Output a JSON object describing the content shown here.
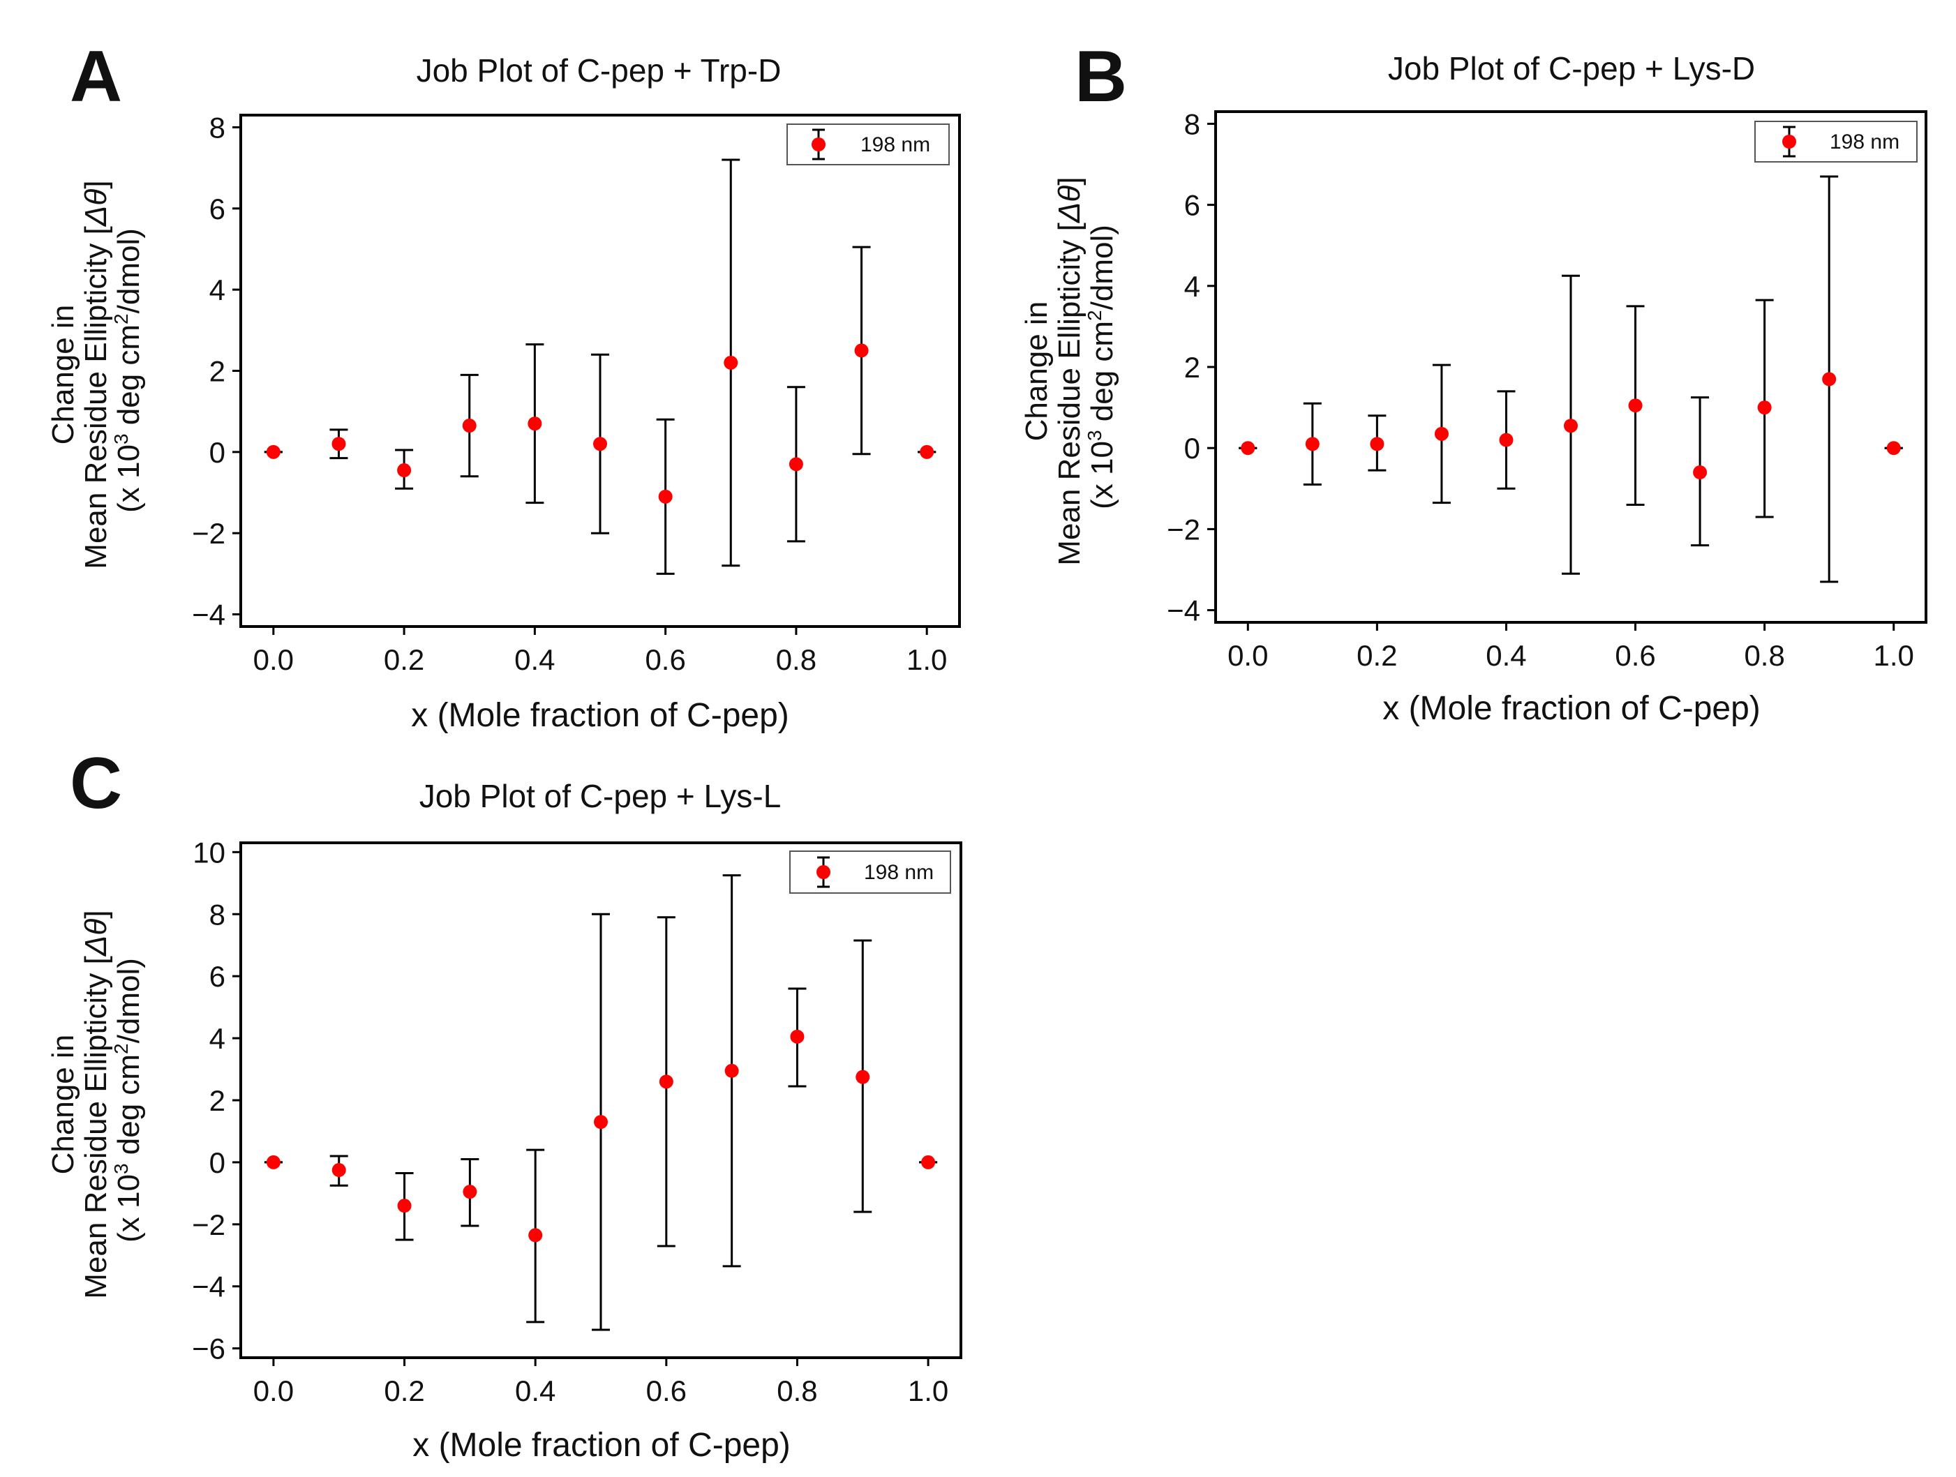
{
  "chart_data": [
    {
      "panel": "A",
      "type": "scatter",
      "title": "Job Plot of C-pep + Trp-D",
      "xlabel": "x (Mole fraction of C-pep)",
      "ylabel": {
        "line1": "Change in",
        "line2_prefix": "Mean Residue Ellipticity [",
        "line2_symbol": "Δθ",
        "line2_suffix": "]",
        "line3_a": "(x 10",
        "line3_sup1": "3",
        "line3_b": " deg cm",
        "line3_sup2": "2",
        "line3_c": "/dmol)"
      },
      "xlim": [
        -0.05,
        1.05
      ],
      "ylim": [
        -4.3,
        8.3
      ],
      "xticks": [
        0.0,
        0.2,
        0.4,
        0.6,
        0.8,
        1.0
      ],
      "xtick_labels": [
        "0.0",
        "0.2",
        "0.4",
        "0.6",
        "0.8",
        "1.0"
      ],
      "yticks": [
        -4,
        -2,
        0,
        2,
        4,
        6,
        8
      ],
      "ytick_labels": [
        "−4",
        "−2",
        "0",
        "2",
        "4",
        "6",
        "8"
      ],
      "legend": {
        "label": "198 nm",
        "position": "top-right"
      },
      "marker_color": "#ff0000",
      "series": [
        {
          "name": "198 nm",
          "x": [
            0.0,
            0.1,
            0.2,
            0.3,
            0.4,
            0.5,
            0.6,
            0.7,
            0.8,
            0.9,
            1.0
          ],
          "y": [
            0.0,
            0.2,
            -0.45,
            0.65,
            0.7,
            0.2,
            -1.1,
            2.2,
            -0.3,
            2.5,
            0.0
          ],
          "err_low": [
            0.0,
            -0.15,
            -0.9,
            -0.6,
            -1.25,
            -2.0,
            -3.0,
            -2.8,
            -2.2,
            -0.05,
            0.0
          ],
          "err_high": [
            0.0,
            0.55,
            0.05,
            1.9,
            2.65,
            2.4,
            0.8,
            7.2,
            1.6,
            5.05,
            0.0
          ]
        }
      ]
    },
    {
      "panel": "B",
      "type": "scatter",
      "title": "Job Plot of C-pep + Lys-D",
      "xlabel": "x (Mole fraction of C-pep)",
      "ylabel": {
        "line1": "Change in",
        "line2_prefix": "Mean Residue Ellipticity [",
        "line2_symbol": "Δθ",
        "line2_suffix": "]",
        "line3_a": "(x 10",
        "line3_sup1": "3",
        "line3_b": " deg cm",
        "line3_sup2": "2",
        "line3_c": "/dmol)"
      },
      "xlim": [
        -0.05,
        1.05
      ],
      "ylim": [
        -4.3,
        8.3
      ],
      "xticks": [
        0.0,
        0.2,
        0.4,
        0.6,
        0.8,
        1.0
      ],
      "xtick_labels": [
        "0.0",
        "0.2",
        "0.4",
        "0.6",
        "0.8",
        "1.0"
      ],
      "yticks": [
        -4,
        -2,
        0,
        2,
        4,
        6,
        8
      ],
      "ytick_labels": [
        "−4",
        "−2",
        "0",
        "2",
        "4",
        "6",
        "8"
      ],
      "legend": {
        "label": "198 nm",
        "position": "top-right"
      },
      "marker_color": "#ff0000",
      "series": [
        {
          "name": "198 nm",
          "x": [
            0.0,
            0.1,
            0.2,
            0.3,
            0.4,
            0.5,
            0.6,
            0.7,
            0.8,
            0.9,
            1.0
          ],
          "y": [
            0.0,
            0.1,
            0.1,
            0.35,
            0.2,
            0.55,
            1.05,
            -0.6,
            1.0,
            1.7,
            0.0
          ],
          "err_low": [
            0.0,
            -0.9,
            -0.55,
            -1.35,
            -1.0,
            -3.1,
            -1.4,
            -2.4,
            -1.7,
            -3.3,
            0.0
          ],
          "err_high": [
            0.0,
            1.1,
            0.8,
            2.05,
            1.4,
            4.25,
            3.5,
            1.25,
            3.65,
            6.7,
            0.0
          ]
        }
      ]
    },
    {
      "panel": "C",
      "type": "scatter",
      "title": "Job Plot of C-pep + Lys-L",
      "xlabel": "x (Mole fraction of C-pep)",
      "ylabel": {
        "line1": "Change in",
        "line2_prefix": "Mean Residue Ellipticity [",
        "line2_symbol": "Δθ",
        "line2_suffix": "]",
        "line3_a": "(x 10",
        "line3_sup1": "3",
        "line3_b": " deg cm",
        "line3_sup2": "2",
        "line3_c": "/dmol)"
      },
      "xlim": [
        -0.05,
        1.05
      ],
      "ylim": [
        -6.3,
        10.3
      ],
      "xticks": [
        0.0,
        0.2,
        0.4,
        0.6,
        0.8,
        1.0
      ],
      "xtick_labels": [
        "0.0",
        "0.2",
        "0.4",
        "0.6",
        "0.8",
        "1.0"
      ],
      "yticks": [
        -6,
        -4,
        -2,
        0,
        2,
        4,
        6,
        8,
        10
      ],
      "ytick_labels": [
        "−6",
        "−4",
        "−2",
        "0",
        "2",
        "4",
        "6",
        "8",
        "10"
      ],
      "legend": {
        "label": "198 nm",
        "position": "top-right"
      },
      "marker_color": "#ff0000",
      "series": [
        {
          "name": "198 nm",
          "x": [
            0.0,
            0.1,
            0.2,
            0.3,
            0.4,
            0.5,
            0.6,
            0.7,
            0.8,
            0.9,
            1.0
          ],
          "y": [
            0.0,
            -0.25,
            -1.4,
            -0.95,
            -2.35,
            1.3,
            2.6,
            2.95,
            4.05,
            2.75,
            0.0
          ],
          "err_low": [
            0.0,
            -0.75,
            -2.5,
            -2.05,
            -5.15,
            -5.4,
            -2.7,
            -3.35,
            2.45,
            -1.6,
            0.0
          ],
          "err_high": [
            0.0,
            0.2,
            -0.35,
            0.1,
            0.4,
            8.0,
            7.9,
            9.25,
            5.6,
            7.15,
            0.0
          ]
        }
      ]
    }
  ]
}
